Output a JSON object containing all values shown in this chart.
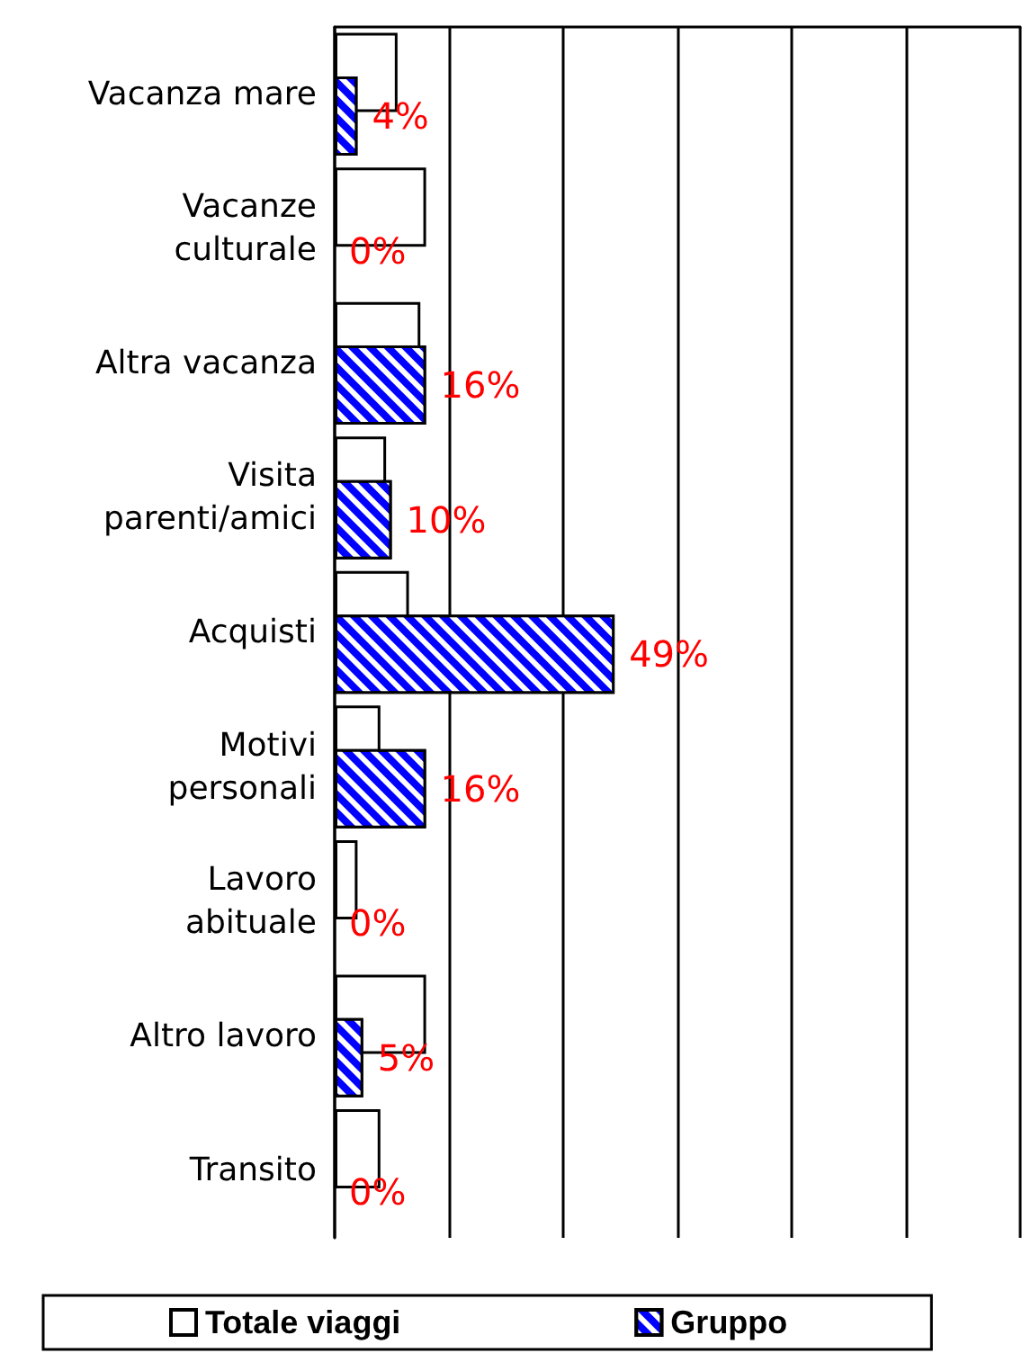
{
  "chart_data": {
    "type": "bar",
    "orientation": "horizontal",
    "categories": [
      "Vacanza mare",
      "Vacanze\nculturale",
      "Altra vacanza",
      "Visita\nparenti/amici",
      "Acquisti",
      "Motivi\npersonali",
      "Lavoro\nabituale",
      "Altro lavoro",
      "Transito"
    ],
    "series": [
      {
        "name": "Totale viaggi",
        "color": "#ffffff",
        "values": [
          11,
          16,
          15,
          9,
          13,
          8,
          4,
          16,
          8
        ]
      },
      {
        "name": "Gruppo",
        "color": "#0000ff",
        "values": [
          4,
          0,
          16,
          10,
          49,
          16,
          0,
          5,
          0
        ],
        "value_labels": [
          "4%",
          "0%",
          "16%",
          "10%",
          "49%",
          "16%",
          "0%",
          "5%",
          "0%"
        ]
      }
    ],
    "xlim": [
      0,
      120
    ],
    "tick_labels": "y",
    "grid": "x",
    "legend": "bottom"
  }
}
